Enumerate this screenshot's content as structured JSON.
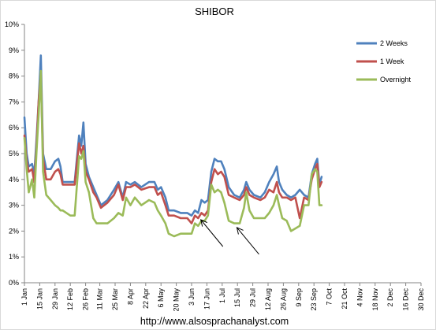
{
  "chart_data": {
    "type": "line",
    "title": "SHIBOR",
    "xlabel": "",
    "ylabel": "",
    "ylim": [
      0,
      10
    ],
    "y_ticks": [
      "0%",
      "1%",
      "2%",
      "3%",
      "4%",
      "5%",
      "6%",
      "7%",
      "8%",
      "9%",
      "10%"
    ],
    "x_range": [
      "2013-01-01",
      "2013-12-30"
    ],
    "x_ticks": [
      {
        "date": "2013-01-01",
        "label": "1 Jan"
      },
      {
        "date": "2013-01-15",
        "label": "15 Jan"
      },
      {
        "date": "2013-01-29",
        "label": "29 Jan"
      },
      {
        "date": "2013-02-12",
        "label": "12 Feb"
      },
      {
        "date": "2013-02-26",
        "label": "26 Feb"
      },
      {
        "date": "2013-03-11",
        "label": "11 Mar"
      },
      {
        "date": "2013-03-25",
        "label": "25 Mar"
      },
      {
        "date": "2013-04-08",
        "label": "8 Apr"
      },
      {
        "date": "2013-04-22",
        "label": "22 Apr"
      },
      {
        "date": "2013-05-06",
        "label": "6 May"
      },
      {
        "date": "2013-05-20",
        "label": "20 May"
      },
      {
        "date": "2013-06-03",
        "label": "3 Jun"
      },
      {
        "date": "2013-06-17",
        "label": "17 Jun"
      },
      {
        "date": "2013-07-01",
        "label": "1 Jul"
      },
      {
        "date": "2013-07-15",
        "label": "15 Jul"
      },
      {
        "date": "2013-07-29",
        "label": "29 Jul"
      },
      {
        "date": "2013-08-12",
        "label": "12 Aug"
      },
      {
        "date": "2013-08-26",
        "label": "26 Aug"
      },
      {
        "date": "2013-09-09",
        "label": "9 Sep"
      },
      {
        "date": "2013-09-23",
        "label": "23 Sep"
      },
      {
        "date": "2013-10-07",
        "label": "7 Oct"
      },
      {
        "date": "2013-10-21",
        "label": "21 Oct"
      },
      {
        "date": "2013-11-04",
        "label": "4 Nov"
      },
      {
        "date": "2013-11-18",
        "label": "18 Nov"
      },
      {
        "date": "2013-12-02",
        "label": "2 Dec"
      },
      {
        "date": "2013-12-16",
        "label": "16 Dec"
      },
      {
        "date": "2013-12-30",
        "label": "30 Dec"
      }
    ],
    "grid": false,
    "legend_position": "top-right",
    "series": [
      {
        "name": "2 Weeks",
        "color": "#4F81BD",
        "points": [
          [
            "2013-01-01",
            6.4
          ],
          [
            "2013-01-03",
            5.0
          ],
          [
            "2013-01-05",
            4.5
          ],
          [
            "2013-01-08",
            4.6
          ],
          [
            "2013-01-10",
            4.2
          ],
          [
            "2013-01-12",
            5.5
          ],
          [
            "2013-01-14",
            7.0
          ],
          [
            "2013-01-16",
            8.8
          ],
          [
            "2013-01-18",
            5.0
          ],
          [
            "2013-01-21",
            4.4
          ],
          [
            "2013-01-25",
            4.4
          ],
          [
            "2013-01-29",
            4.7
          ],
          [
            "2013-02-01",
            4.8
          ],
          [
            "2013-02-03",
            4.5
          ],
          [
            "2013-02-05",
            3.9
          ],
          [
            "2013-02-12",
            3.9
          ],
          [
            "2013-02-16",
            3.9
          ],
          [
            "2013-02-20",
            5.7
          ],
          [
            "2013-02-22",
            5.3
          ],
          [
            "2013-02-24",
            6.2
          ],
          [
            "2013-02-26",
            4.6
          ],
          [
            "2013-03-01",
            4.1
          ],
          [
            "2013-03-05",
            3.7
          ],
          [
            "2013-03-08",
            3.4
          ],
          [
            "2013-03-12",
            3.0
          ],
          [
            "2013-03-18",
            3.2
          ],
          [
            "2013-03-24",
            3.6
          ],
          [
            "2013-03-28",
            3.9
          ],
          [
            "2013-04-01",
            3.3
          ],
          [
            "2013-04-04",
            3.9
          ],
          [
            "2013-04-08",
            3.8
          ],
          [
            "2013-04-12",
            3.9
          ],
          [
            "2013-04-18",
            3.7
          ],
          [
            "2013-04-25",
            3.9
          ],
          [
            "2013-04-30",
            3.9
          ],
          [
            "2013-05-03",
            3.6
          ],
          [
            "2013-05-06",
            3.7
          ],
          [
            "2013-05-10",
            3.3
          ],
          [
            "2013-05-13",
            2.8
          ],
          [
            "2013-05-18",
            2.8
          ],
          [
            "2013-05-24",
            2.7
          ],
          [
            "2013-05-30",
            2.7
          ],
          [
            "2013-06-03",
            2.6
          ],
          [
            "2013-06-06",
            2.8
          ],
          [
            "2013-06-09",
            2.7
          ],
          [
            "2013-06-12",
            3.2
          ],
          [
            "2013-06-15",
            3.1
          ],
          [
            "2013-06-18",
            3.2
          ],
          [
            "2013-06-21",
            4.3
          ],
          [
            "2013-06-24",
            4.8
          ],
          [
            "2013-06-27",
            4.7
          ],
          [
            "2013-06-30",
            4.7
          ],
          [
            "2013-07-03",
            4.4
          ],
          [
            "2013-07-07",
            3.7
          ],
          [
            "2013-07-12",
            3.4
          ],
          [
            "2013-07-17",
            3.3
          ],
          [
            "2013-07-21",
            3.6
          ],
          [
            "2013-07-23",
            3.9
          ],
          [
            "2013-07-26",
            3.6
          ],
          [
            "2013-07-30",
            3.4
          ],
          [
            "2013-08-05",
            3.3
          ],
          [
            "2013-08-09",
            3.5
          ],
          [
            "2013-08-13",
            3.9
          ],
          [
            "2013-08-17",
            4.2
          ],
          [
            "2013-08-20",
            4.5
          ],
          [
            "2013-08-22",
            3.9
          ],
          [
            "2013-08-25",
            3.6
          ],
          [
            "2013-08-29",
            3.4
          ],
          [
            "2013-09-02",
            3.3
          ],
          [
            "2013-09-06",
            3.4
          ],
          [
            "2013-09-10",
            3.6
          ],
          [
            "2013-09-14",
            3.4
          ],
          [
            "2013-09-18",
            3.3
          ],
          [
            "2013-09-21",
            4.2
          ],
          [
            "2013-09-24",
            4.6
          ],
          [
            "2013-09-26",
            4.8
          ],
          [
            "2013-09-28",
            3.8
          ],
          [
            "2013-09-30",
            4.1
          ]
        ]
      },
      {
        "name": "1 Week",
        "color": "#C0504D",
        "points": [
          [
            "2013-01-01",
            5.7
          ],
          [
            "2013-01-03",
            4.7
          ],
          [
            "2013-01-05",
            4.3
          ],
          [
            "2013-01-08",
            4.4
          ],
          [
            "2013-01-10",
            3.9
          ],
          [
            "2013-01-12",
            5.2
          ],
          [
            "2013-01-14",
            7.0
          ],
          [
            "2013-01-16",
            8.1
          ],
          [
            "2013-01-18",
            4.8
          ],
          [
            "2013-01-21",
            4.0
          ],
          [
            "2013-01-25",
            4.0
          ],
          [
            "2013-01-29",
            4.3
          ],
          [
            "2013-02-01",
            4.4
          ],
          [
            "2013-02-03",
            4.2
          ],
          [
            "2013-02-05",
            3.8
          ],
          [
            "2013-02-12",
            3.8
          ],
          [
            "2013-02-16",
            3.8
          ],
          [
            "2013-02-20",
            5.4
          ],
          [
            "2013-02-22",
            5.0
          ],
          [
            "2013-02-24",
            5.3
          ],
          [
            "2013-02-26",
            4.3
          ],
          [
            "2013-03-01",
            4.0
          ],
          [
            "2013-03-05",
            3.5
          ],
          [
            "2013-03-08",
            3.3
          ],
          [
            "2013-03-12",
            2.9
          ],
          [
            "2013-03-18",
            3.1
          ],
          [
            "2013-03-24",
            3.4
          ],
          [
            "2013-03-28",
            3.8
          ],
          [
            "2013-04-01",
            3.2
          ],
          [
            "2013-04-04",
            3.7
          ],
          [
            "2013-04-08",
            3.7
          ],
          [
            "2013-04-12",
            3.8
          ],
          [
            "2013-04-18",
            3.6
          ],
          [
            "2013-04-25",
            3.7
          ],
          [
            "2013-04-30",
            3.7
          ],
          [
            "2013-05-03",
            3.4
          ],
          [
            "2013-05-06",
            3.5
          ],
          [
            "2013-05-10",
            3.0
          ],
          [
            "2013-05-13",
            2.6
          ],
          [
            "2013-05-18",
            2.6
          ],
          [
            "2013-05-24",
            2.5
          ],
          [
            "2013-05-30",
            2.5
          ],
          [
            "2013-06-03",
            2.3
          ],
          [
            "2013-06-06",
            2.6
          ],
          [
            "2013-06-09",
            2.5
          ],
          [
            "2013-06-12",
            2.7
          ],
          [
            "2013-06-15",
            2.6
          ],
          [
            "2013-06-18",
            2.8
          ],
          [
            "2013-06-21",
            3.9
          ],
          [
            "2013-06-24",
            4.4
          ],
          [
            "2013-06-27",
            4.2
          ],
          [
            "2013-06-30",
            4.3
          ],
          [
            "2013-07-03",
            4.1
          ],
          [
            "2013-07-07",
            3.4
          ],
          [
            "2013-07-12",
            3.3
          ],
          [
            "2013-07-17",
            3.2
          ],
          [
            "2013-07-21",
            3.4
          ],
          [
            "2013-07-23",
            3.7
          ],
          [
            "2013-07-26",
            3.4
          ],
          [
            "2013-07-30",
            3.3
          ],
          [
            "2013-08-05",
            3.2
          ],
          [
            "2013-08-09",
            3.3
          ],
          [
            "2013-08-13",
            3.6
          ],
          [
            "2013-08-17",
            3.5
          ],
          [
            "2013-08-20",
            3.9
          ],
          [
            "2013-08-22",
            3.5
          ],
          [
            "2013-08-25",
            3.3
          ],
          [
            "2013-08-29",
            3.3
          ],
          [
            "2013-09-02",
            3.2
          ],
          [
            "2013-09-06",
            3.3
          ],
          [
            "2013-09-10",
            2.5
          ],
          [
            "2013-09-14",
            3.3
          ],
          [
            "2013-09-18",
            3.2
          ],
          [
            "2013-09-21",
            4.0
          ],
          [
            "2013-09-24",
            4.4
          ],
          [
            "2013-09-26",
            4.6
          ],
          [
            "2013-09-28",
            3.7
          ],
          [
            "2013-09-30",
            3.9
          ]
        ]
      },
      {
        "name": "Overnight",
        "color": "#9BBB59",
        "points": [
          [
            "2013-01-01",
            5.6
          ],
          [
            "2013-01-03",
            4.4
          ],
          [
            "2013-01-05",
            3.5
          ],
          [
            "2013-01-08",
            4.0
          ],
          [
            "2013-01-10",
            3.3
          ],
          [
            "2013-01-12",
            5.0
          ],
          [
            "2013-01-14",
            6.5
          ],
          [
            "2013-01-16",
            8.2
          ],
          [
            "2013-01-18",
            4.3
          ],
          [
            "2013-01-21",
            3.4
          ],
          [
            "2013-01-25",
            3.2
          ],
          [
            "2013-01-29",
            3.0
          ],
          [
            "2013-02-01",
            2.9
          ],
          [
            "2013-02-03",
            2.8
          ],
          [
            "2013-02-05",
            2.8
          ],
          [
            "2013-02-12",
            2.6
          ],
          [
            "2013-02-16",
            2.6
          ],
          [
            "2013-02-20",
            4.9
          ],
          [
            "2013-02-22",
            4.8
          ],
          [
            "2013-02-24",
            5.1
          ],
          [
            "2013-02-26",
            3.9
          ],
          [
            "2013-03-01",
            3.5
          ],
          [
            "2013-03-05",
            2.5
          ],
          [
            "2013-03-08",
            2.3
          ],
          [
            "2013-03-12",
            2.3
          ],
          [
            "2013-03-18",
            2.3
          ],
          [
            "2013-03-24",
            2.5
          ],
          [
            "2013-03-28",
            2.7
          ],
          [
            "2013-04-01",
            2.6
          ],
          [
            "2013-04-04",
            3.3
          ],
          [
            "2013-04-08",
            3.0
          ],
          [
            "2013-04-12",
            3.3
          ],
          [
            "2013-04-18",
            3.0
          ],
          [
            "2013-04-25",
            3.2
          ],
          [
            "2013-04-30",
            3.1
          ],
          [
            "2013-05-03",
            2.8
          ],
          [
            "2013-05-06",
            2.6
          ],
          [
            "2013-05-10",
            2.3
          ],
          [
            "2013-05-13",
            1.9
          ],
          [
            "2013-05-18",
            1.8
          ],
          [
            "2013-05-24",
            1.9
          ],
          [
            "2013-05-30",
            1.9
          ],
          [
            "2013-06-03",
            1.9
          ],
          [
            "2013-06-06",
            2.3
          ],
          [
            "2013-06-09",
            2.2
          ],
          [
            "2013-06-12",
            2.4
          ],
          [
            "2013-06-15",
            2.4
          ],
          [
            "2013-06-18",
            2.6
          ],
          [
            "2013-06-21",
            3.8
          ],
          [
            "2013-06-24",
            3.5
          ],
          [
            "2013-06-27",
            3.6
          ],
          [
            "2013-06-30",
            3.5
          ],
          [
            "2013-07-03",
            3.1
          ],
          [
            "2013-07-07",
            2.4
          ],
          [
            "2013-07-12",
            2.3
          ],
          [
            "2013-07-17",
            2.3
          ],
          [
            "2013-07-21",
            2.9
          ],
          [
            "2013-07-23",
            3.5
          ],
          [
            "2013-07-26",
            2.8
          ],
          [
            "2013-07-30",
            2.5
          ],
          [
            "2013-08-05",
            2.5
          ],
          [
            "2013-08-09",
            2.5
          ],
          [
            "2013-08-13",
            2.7
          ],
          [
            "2013-08-17",
            3.0
          ],
          [
            "2013-08-20",
            3.4
          ],
          [
            "2013-08-22",
            3.0
          ],
          [
            "2013-08-25",
            2.5
          ],
          [
            "2013-08-29",
            2.4
          ],
          [
            "2013-09-02",
            2.0
          ],
          [
            "2013-09-06",
            2.1
          ],
          [
            "2013-09-10",
            2.2
          ],
          [
            "2013-09-14",
            3.0
          ],
          [
            "2013-09-18",
            3.0
          ],
          [
            "2013-09-21",
            4.2
          ],
          [
            "2013-09-24",
            4.4
          ],
          [
            "2013-09-26",
            4.3
          ],
          [
            "2013-09-28",
            3.0
          ],
          [
            "2013-09-30",
            3.0
          ]
        ]
      }
    ],
    "annotations": [
      {
        "type": "arrow",
        "points_to": [
          "2013-06-10",
          2.5
        ]
      },
      {
        "type": "arrow",
        "points_to": [
          "2013-07-13",
          2.2
        ]
      }
    ]
  },
  "footer": {
    "url": "http://www.alsosprachanalyst.com"
  }
}
